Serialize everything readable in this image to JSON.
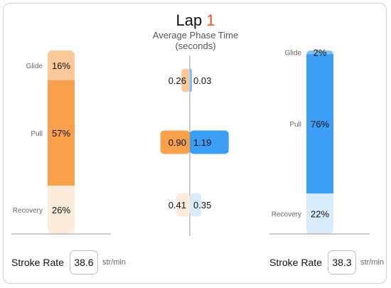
{
  "title": {
    "prefix": "Lap",
    "lap": "1"
  },
  "subtitle": {
    "line1": "Average Phase Time",
    "line2": "(seconds)"
  },
  "colors": {
    "left": {
      "Glide": "#fbc99a",
      "Pull": "#f9a04d",
      "Recovery": "#fdebdb"
    },
    "right": {
      "Glide": "#7cc0f7",
      "Pull": "#3d9ef5",
      "Recovery": "#d7ebfb"
    }
  },
  "chart_data": [
    {
      "type": "bar",
      "stacked": true,
      "orientation": "vertical",
      "segments": [
        {
          "phase": "Glide",
          "value": 16,
          "label": "16%"
        },
        {
          "phase": "Pull",
          "value": 57,
          "label": "57%"
        },
        {
          "phase": "Recovery",
          "value": 26,
          "label": "26%"
        }
      ]
    },
    {
      "type": "bar",
      "orientation": "horizontal",
      "diverging": true,
      "categories": [
        "Glide",
        "Pull",
        "Recovery"
      ],
      "series": [
        {
          "values": [
            0.26,
            0.9,
            0.41
          ],
          "labels": [
            "0.26",
            "0.90",
            "0.41"
          ]
        },
        {
          "values": [
            0.03,
            1.19,
            0.35
          ],
          "labels": [
            "0.03",
            "1.19",
            "0.35"
          ]
        }
      ]
    },
    {
      "type": "bar",
      "stacked": true,
      "orientation": "vertical",
      "segments": [
        {
          "phase": "Glide",
          "value": 2,
          "label": "2%"
        },
        {
          "phase": "Pull",
          "value": 76,
          "label": "76%"
        },
        {
          "phase": "Recovery",
          "value": 22,
          "label": "22%"
        }
      ]
    }
  ],
  "stroke_rate": {
    "label": "Stroke Rate",
    "unit": "str/min",
    "left": "38.6",
    "right": "38.3"
  }
}
